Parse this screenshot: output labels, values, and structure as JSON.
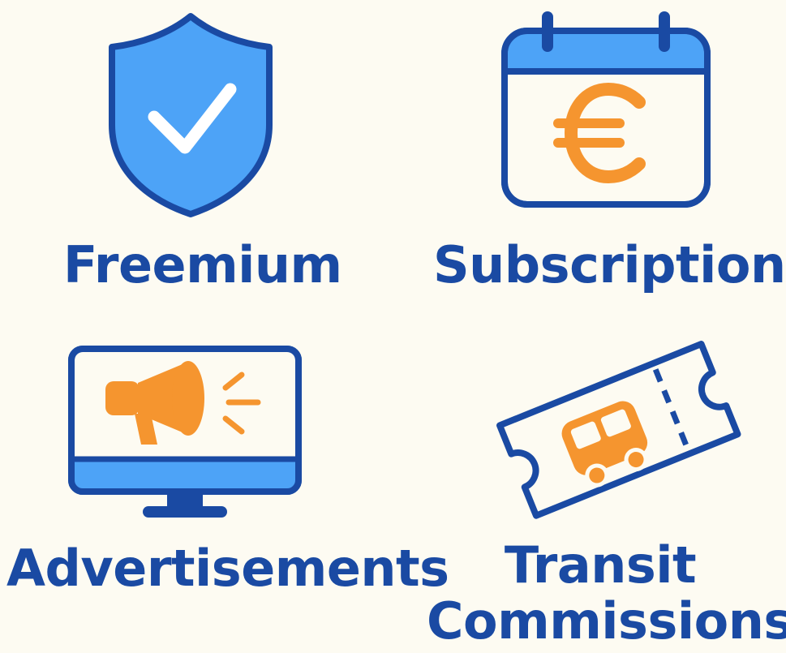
{
  "colors": {
    "background": "#fdfbf2",
    "navy": "#1a4aa3",
    "blue": "#4da3f7",
    "orange": "#f5952f",
    "white": "#ffffff"
  },
  "tiles": {
    "freemium": {
      "label": "Freemium",
      "icon": "shield-check-icon"
    },
    "subscription": {
      "label": "Subscription",
      "icon": "calendar-euro-icon"
    },
    "advertisements": {
      "label": "Advertisements",
      "icon": "monitor-megaphone-icon"
    },
    "transit": {
      "label_line1": "Transit",
      "label_line2": "Commissions",
      "icon": "bus-ticket-icon"
    }
  }
}
